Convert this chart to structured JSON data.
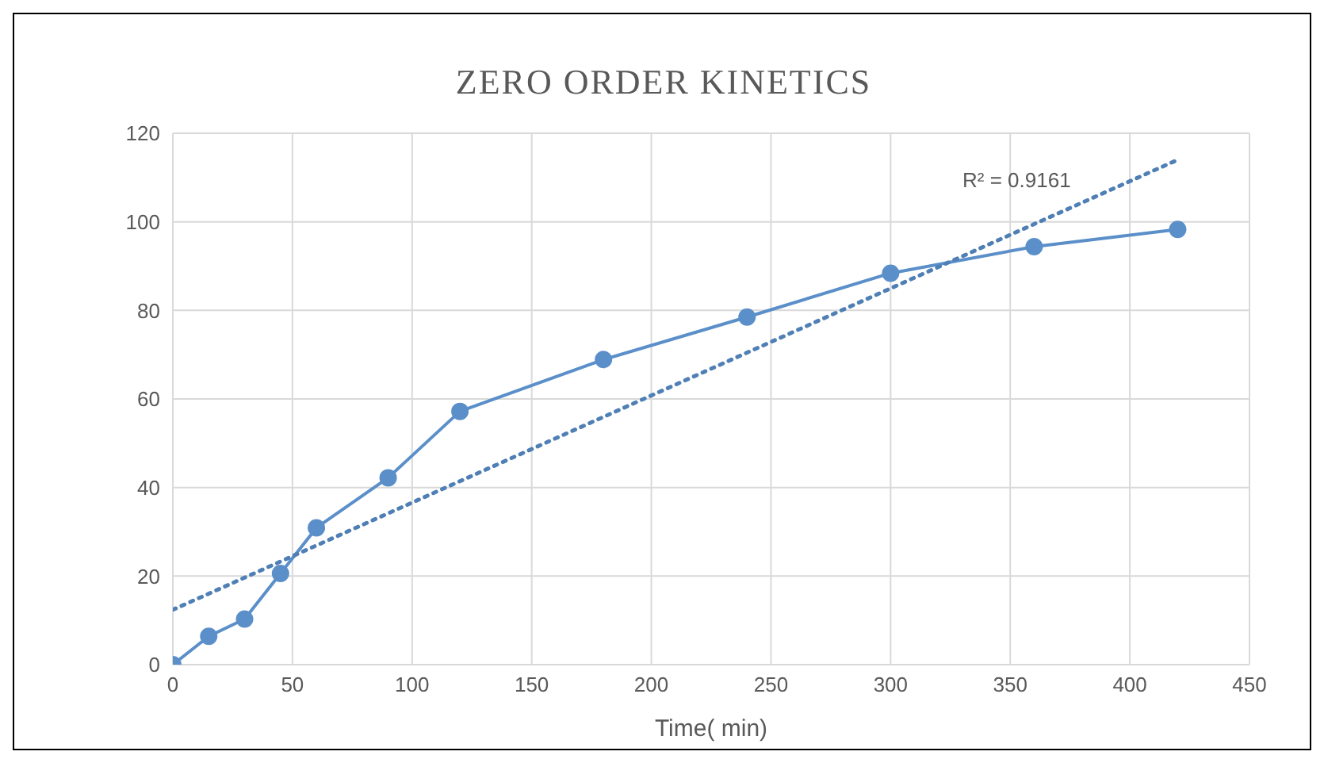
{
  "chart_data": {
    "type": "line",
    "title": "ZERO ORDER KINETICS",
    "xlabel": "Time( min)",
    "x": [
      0,
      15,
      30,
      45,
      60,
      90,
      120,
      180,
      240,
      300,
      360,
      420
    ],
    "series": [
      {
        "color": "#5b8fc9",
        "values": [
          0,
          6.4,
          10.3,
          20.6,
          30.9,
          42.2,
          57.2,
          68.9,
          78.5,
          88.4,
          94.4,
          98.3
        ],
        "marker": "circle",
        "line_style": "solid"
      },
      {
        "type": "line",
        "x": [
          0,
          420
        ],
        "color": "#4f7fb5",
        "values": [
          12.4,
          114
        ],
        "marker": "none",
        "line_style": "dotted"
      }
    ],
    "annotations": [
      "R² = 0.9161"
    ],
    "xlim": [
      0,
      450
    ],
    "xticks": [
      0,
      50,
      100,
      150,
      200,
      250,
      300,
      350,
      400,
      450
    ],
    "ylim": [
      0,
      120
    ],
    "yticks": [
      0,
      20,
      40,
      60,
      80,
      100,
      120
    ],
    "grid": true,
    "legend": false
  }
}
